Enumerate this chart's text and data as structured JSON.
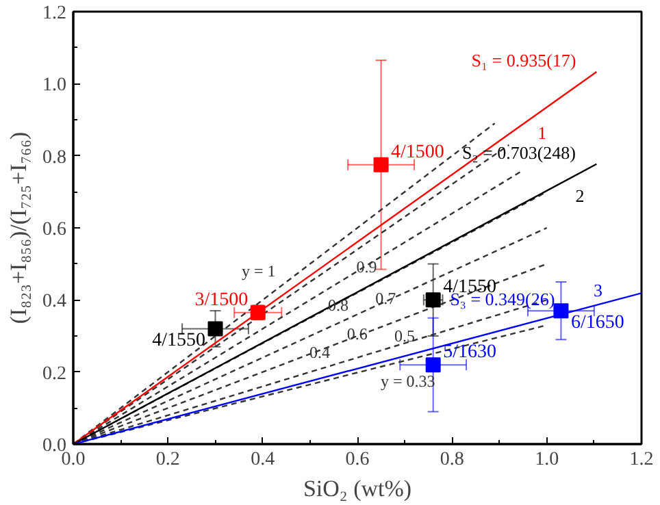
{
  "chart_data": {
    "type": "scatter",
    "xlabel": "SiO₂ (wt%)",
    "ylabel": "(I₈₂₃+I₈₅₆)/(I₇₂₅+I₇₆₆)",
    "xlim": [
      0,
      1.2
    ],
    "ylim": [
      0,
      1.2
    ],
    "xticks": [
      {
        "value": 0,
        "label": "0.0"
      },
      0.2,
      0.4,
      0.6,
      0.8,
      {
        "value": 1,
        "label": "1.0"
      },
      1.2
    ],
    "yticks": [
      {
        "value": 0,
        "label": "0.0"
      },
      0.2,
      0.4,
      0.6,
      0.8,
      {
        "value": 1,
        "label": "1.0"
      },
      1.2
    ],
    "grid": false,
    "marker": "square",
    "annotations": [
      {
        "text": "S₁ = 0.935(17)",
        "x": 1.105,
        "y": 1.033
      },
      {
        "text": "1",
        "x": 0.99,
        "y": 0.926
      },
      {
        "text": "S₂ = 0.703(248)",
        "x": 1.105,
        "y": 0.777
      },
      {
        "text": "2",
        "x": 1.07,
        "y": 0.752
      },
      {
        "text": "S₃ = 0.349(26)",
        "x": 1.06,
        "y": 0.37
      },
      {
        "text": "3",
        "x": 1.13,
        "y": 0.394
      }
    ],
    "series": [
      {
        "type": "line",
        "name": "y = 1",
        "line_style": "dashed",
        "marker": "none",
        "color": "#333333",
        "x": [
          0,
          0.45,
          0.89
        ],
        "values": [
          0,
          0.45,
          0.89
        ]
      },
      {
        "type": "line",
        "name": "0.9",
        "line_style": "dashed",
        "marker": "none",
        "color": "#333333",
        "x": [
          0,
          0.58,
          0.92
        ],
        "values": [
          0,
          0.522,
          0.83
        ]
      },
      {
        "type": "line",
        "name": "0.8",
        "line_style": "dashed",
        "marker": "none",
        "color": "#333333",
        "x": [
          0,
          0.52,
          0.95
        ],
        "values": [
          0,
          0.416,
          0.76
        ]
      },
      {
        "type": "line",
        "name": "0.7",
        "line_style": "dashed",
        "marker": "none",
        "color": "#333333",
        "x": [
          0,
          0.62,
          1.0
        ],
        "values": [
          0,
          0.434,
          0.7
        ]
      },
      {
        "type": "line",
        "name": "0.6",
        "line_style": "dashed",
        "marker": "none",
        "color": "#333333",
        "x": [
          0,
          0.56,
          1.0
        ],
        "values": [
          0,
          0.336,
          0.6
        ]
      },
      {
        "type": "line",
        "name": "0.5",
        "line_style": "dashed",
        "marker": "none",
        "color": "#333333",
        "x": [
          0,
          0.66,
          1.0
        ],
        "values": [
          0,
          0.33,
          0.5
        ]
      },
      {
        "type": "line",
        "name": "0.4",
        "line_style": "dashed",
        "marker": "none",
        "color": "#333333",
        "x": [
          0,
          0.56,
          1.0
        ],
        "values": [
          0,
          0.224,
          0.4
        ]
      },
      {
        "type": "line",
        "name": "y = 0.33",
        "line_style": "dashed",
        "marker": "none",
        "color": "#333333",
        "x": [
          0,
          0.62,
          1.0
        ],
        "values": [
          0,
          0.205,
          0.33
        ]
      },
      {
        "type": "line",
        "line_style": "solid",
        "marker": "none",
        "color": "#ff0000",
        "x": [
          0,
          1.105
        ],
        "values": [
          0,
          1.033
        ]
      },
      {
        "type": "line",
        "line_style": "solid",
        "marker": "none",
        "color": "#000000",
        "x": [
          0,
          1.105
        ],
        "values": [
          0,
          0.777
        ]
      },
      {
        "type": "line",
        "line_style": "solid",
        "marker": "none",
        "color": "#0000ff",
        "x": [
          0,
          1.2
        ],
        "values": [
          0,
          0.419
        ]
      },
      {
        "name": "4/1500",
        "color": "#ff0000",
        "x": [
          0.65
        ],
        "values": [
          0.775
        ],
        "errors": [
          0.29
        ],
        "xerrors": [
          0.07
        ]
      },
      {
        "name": "3/1500",
        "color": "#ff0000",
        "x": [
          0.39
        ],
        "values": [
          0.365
        ],
        "errors": [
          0.02
        ],
        "xerrors": [
          0.05
        ]
      },
      {
        "name": "4/1550",
        "color": "#000000",
        "x": [
          0.3
        ],
        "values": [
          0.32
        ],
        "errors": [
          0.05
        ],
        "xerrors": [
          0.07
        ]
      },
      {
        "name": "4/1550",
        "color": "#000000",
        "x": [
          0.76
        ],
        "values": [
          0.4
        ],
        "errors": [
          0.1
        ],
        "xerrors": [
          0.02
        ]
      },
      {
        "name": "5/1630",
        "color": "#0000ff",
        "x": [
          0.76
        ],
        "values": [
          0.22
        ],
        "errors": [
          0.13
        ],
        "xerrors": [
          0.07
        ]
      },
      {
        "name": "6/1650",
        "color": "#0000ff",
        "x": [
          1.03
        ],
        "values": [
          0.37
        ],
        "errors": [
          0.08
        ],
        "xerrors": [
          0.07
        ]
      }
    ]
  }
}
